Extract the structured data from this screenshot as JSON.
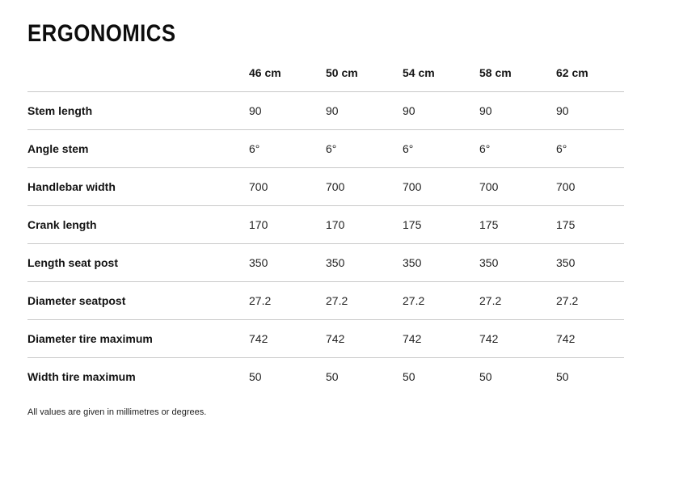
{
  "page": {
    "title": "ERGONOMICS",
    "footnote": "All values are given in millimetres or degrees."
  },
  "colors": {
    "background": "#ffffff",
    "text": "#1b1b1b",
    "divider": "#c9c9c9"
  },
  "table": {
    "label_column_header": "",
    "columns": [
      "46 cm",
      "50 cm",
      "54 cm",
      "58 cm",
      "62 cm"
    ],
    "rows": [
      {
        "label": "Stem length",
        "values": [
          "90",
          "90",
          "90",
          "90",
          "90"
        ]
      },
      {
        "label": "Angle stem",
        "values": [
          "6°",
          "6°",
          "6°",
          "6°",
          "6°"
        ]
      },
      {
        "label": "Handlebar width",
        "values": [
          "700",
          "700",
          "700",
          "700",
          "700"
        ]
      },
      {
        "label": "Crank length",
        "values": [
          "170",
          "170",
          "175",
          "175",
          "175"
        ]
      },
      {
        "label": "Length seat post",
        "values": [
          "350",
          "350",
          "350",
          "350",
          "350"
        ]
      },
      {
        "label": "Diameter seatpost",
        "values": [
          "27.2",
          "27.2",
          "27.2",
          "27.2",
          "27.2"
        ]
      },
      {
        "label": "Diameter tire maximum",
        "values": [
          "742",
          "742",
          "742",
          "742",
          "742"
        ]
      },
      {
        "label": "Width tire maximum",
        "values": [
          "50",
          "50",
          "50",
          "50",
          "50"
        ]
      }
    ]
  }
}
